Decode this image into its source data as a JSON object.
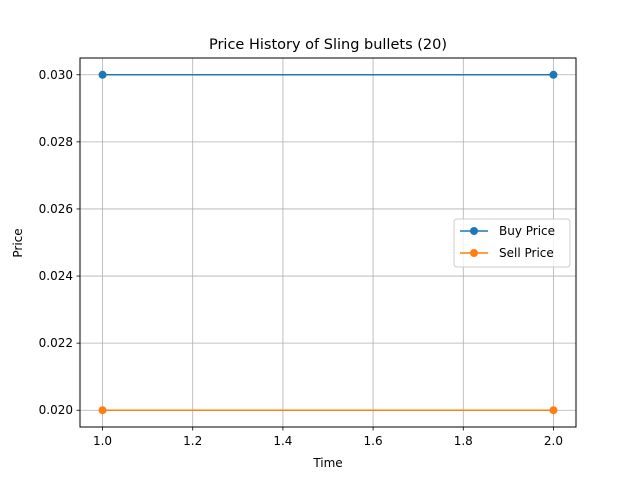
{
  "chart_data": {
    "type": "line",
    "title": "Price History of Sling bullets (20)",
    "xlabel": "Time",
    "ylabel": "Price",
    "xlim": [
      0.95,
      2.05
    ],
    "ylim": [
      0.0195,
      0.0305
    ],
    "x_ticks": [
      1.0,
      1.2,
      1.4,
      1.6,
      1.8,
      2.0
    ],
    "x_tick_labels": [
      "1.0",
      "1.2",
      "1.4",
      "1.6",
      "1.8",
      "2.0"
    ],
    "y_ticks": [
      0.02,
      0.022,
      0.024,
      0.026,
      0.028,
      0.03
    ],
    "y_tick_labels": [
      "0.020",
      "0.022",
      "0.024",
      "0.026",
      "0.028",
      "0.030"
    ],
    "grid": true,
    "legend_position": "center-right",
    "series": [
      {
        "name": "Buy Price",
        "color": "#1f77b4",
        "x": [
          1.0,
          2.0
        ],
        "values": [
          0.03,
          0.03
        ]
      },
      {
        "name": "Sell Price",
        "color": "#ff7f0e",
        "x": [
          1.0,
          2.0
        ],
        "values": [
          0.02,
          0.02
        ]
      }
    ]
  }
}
